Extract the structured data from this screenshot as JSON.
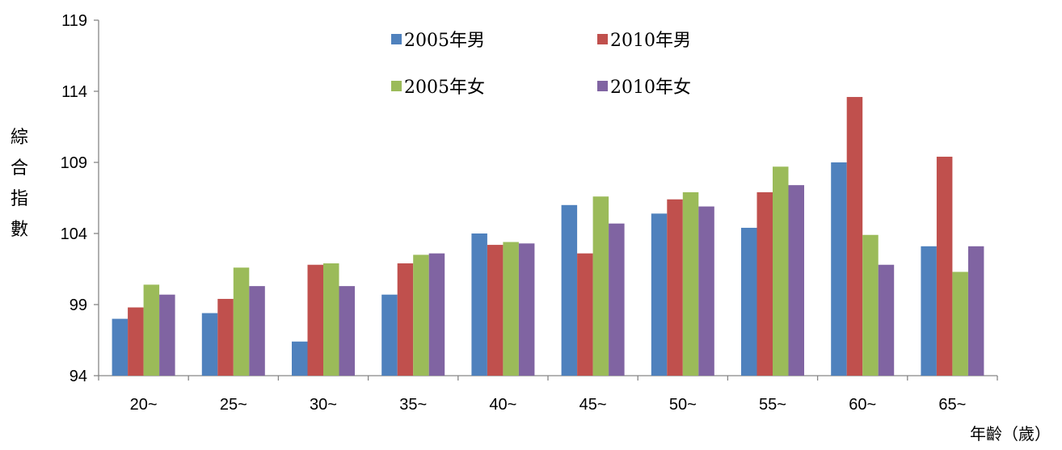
{
  "chart_data": {
    "type": "bar",
    "title": "",
    "xlabel": "年齡（歲）",
    "ylabel": "綜合指數",
    "ylim": [
      94,
      119
    ],
    "yticks": [
      94,
      99,
      104,
      109,
      114,
      119
    ],
    "grid": false,
    "legend_position": "top-center",
    "categories": [
      "20~",
      "25~",
      "30~",
      "35~",
      "40~",
      "45~",
      "50~",
      "55~",
      "60~",
      "65~"
    ],
    "series": [
      {
        "name": "2005年男",
        "color": "#4F81BD",
        "values": [
          98.0,
          98.4,
          96.4,
          99.7,
          104.0,
          106.0,
          105.4,
          104.4,
          109.0,
          103.1
        ]
      },
      {
        "name": "2010年男",
        "color": "#C0504D",
        "values": [
          98.8,
          99.4,
          101.8,
          101.9,
          103.2,
          102.6,
          106.4,
          106.9,
          113.6,
          109.4
        ]
      },
      {
        "name": "2005年女",
        "color": "#9BBB59",
        "values": [
          100.4,
          101.6,
          101.9,
          102.5,
          103.4,
          106.6,
          106.9,
          108.7,
          103.9,
          101.3
        ]
      },
      {
        "name": "2010年女",
        "color": "#8064A2",
        "values": [
          99.7,
          100.3,
          100.3,
          102.6,
          103.3,
          104.7,
          105.9,
          107.4,
          101.8,
          103.1
        ]
      }
    ]
  }
}
